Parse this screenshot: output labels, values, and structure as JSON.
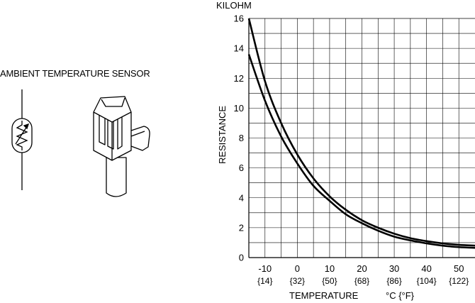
{
  "sensor": {
    "title": "AMBIENT TEMPERATURE SENSOR",
    "symbol_icon": "thermistor-symbol-icon",
    "connector_icon": "sensor-connector-icon"
  },
  "chart_data": {
    "type": "line",
    "y_units_label": "KILOHM",
    "ylabel": "RESISTANCE",
    "xlabel": "TEMPERATURE",
    "xunits": "°C {°F}",
    "xlim": [
      -15,
      55
    ],
    "ylim": [
      0,
      16
    ],
    "grid": true,
    "x_ticks": [
      {
        "c": "-10",
        "f": "{14}",
        "value": -10
      },
      {
        "c": "0",
        "f": "{32}",
        "value": 0
      },
      {
        "c": "10",
        "f": "{50}",
        "value": 10
      },
      {
        "c": "20",
        "f": "{68}",
        "value": 20
      },
      {
        "c": "30",
        "f": "{86}",
        "value": 30
      },
      {
        "c": "40",
        "f": "{104}",
        "value": 40
      },
      {
        "c": "50",
        "f": "{122}",
        "value": 50
      }
    ],
    "y_ticks": [
      "0",
      "2",
      "4",
      "6",
      "8",
      "10",
      "12",
      "14",
      "16"
    ],
    "series": [
      {
        "x": [
          -15,
          -10,
          -5,
          0,
          5,
          10,
          15,
          20,
          25,
          30,
          35,
          40,
          45,
          50,
          55
        ],
        "values": [
          16.0,
          11.8,
          9.0,
          6.9,
          5.3,
          4.1,
          3.2,
          2.5,
          2.0,
          1.6,
          1.3,
          1.1,
          0.95,
          0.85,
          0.8
        ]
      },
      {
        "x": [
          -15,
          -10,
          -5,
          0,
          5,
          10,
          15,
          20,
          25,
          30,
          35,
          40,
          45,
          50,
          55
        ],
        "values": [
          13.6,
          10.5,
          8.1,
          6.3,
          4.8,
          3.8,
          2.9,
          2.3,
          1.8,
          1.4,
          1.15,
          0.95,
          0.8,
          0.7,
          0.65
        ]
      }
    ],
    "line_color": "#000000"
  }
}
